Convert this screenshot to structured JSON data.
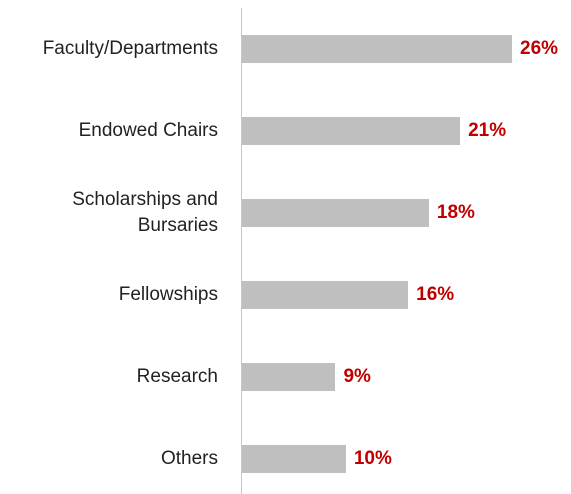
{
  "chart_data": {
    "type": "bar",
    "orientation": "horizontal",
    "categories": [
      "Faculty/Departments",
      "Endowed Chairs",
      "Scholarships and Bursaries",
      "Fellowships",
      "Research",
      "Others"
    ],
    "values": [
      26,
      21,
      18,
      16,
      9,
      10
    ],
    "value_labels": [
      "26%",
      "21%",
      "18%",
      "16%",
      "9%",
      "10%"
    ],
    "color": "#bfbfbf",
    "label_color": "#c00000"
  }
}
